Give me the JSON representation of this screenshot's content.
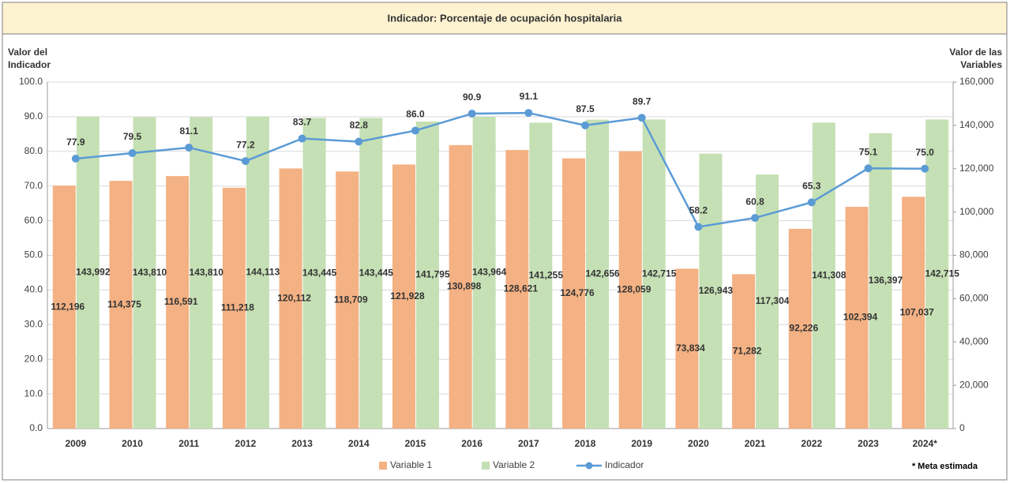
{
  "chart_data": {
    "type": "bar_line",
    "title": "Indicador: Porcentaje de ocupación hospitalaria",
    "y_label": "Valor del Indicador",
    "y2_label": "Valor de las Variables",
    "note": "* Meta estimada",
    "categories": [
      "2009",
      "2010",
      "2011",
      "2012",
      "2013",
      "2014",
      "2015",
      "2016",
      "2017",
      "2018",
      "2019",
      "2020",
      "2021",
      "2022",
      "2023",
      "2024*"
    ],
    "series": [
      {
        "name": "Variable 1",
        "type": "bar",
        "axis": "y2",
        "color": "#f4b183",
        "values": [
          112196,
          114375,
          116591,
          111218,
          120112,
          118709,
          121928,
          130898,
          128621,
          124776,
          128059,
          73834,
          71282,
          92226,
          102394,
          107037
        ],
        "value_labels": [
          "112,196",
          "114,375",
          "116,591",
          "111,218",
          "120,112",
          "118,709",
          "121,928",
          "130,898",
          "128,621",
          "124,776",
          "128,059",
          "73,834",
          "71,282",
          "92,226",
          "102,394",
          "107,037"
        ]
      },
      {
        "name": "Variable 2",
        "type": "bar",
        "axis": "y2",
        "color": "#c5e0b4",
        "values": [
          143992,
          143810,
          143810,
          144113,
          143445,
          143445,
          141795,
          143964,
          141255,
          142656,
          142715,
          126943,
          117304,
          141308,
          136397,
          142715
        ],
        "value_labels": [
          "143,992",
          "143,810",
          "143,810",
          "144,113",
          "143,445",
          "143,445",
          "141,795",
          "143,964",
          "141,255",
          "142,656",
          "142,715",
          "126,943",
          "117,304",
          "141,308",
          "136,397",
          "142,715"
        ]
      },
      {
        "name": "Indicador",
        "type": "line",
        "axis": "y",
        "color": "#5b9bd5",
        "values": [
          77.9,
          79.5,
          81.1,
          77.2,
          83.7,
          82.8,
          86.0,
          90.9,
          91.1,
          87.5,
          89.7,
          58.2,
          60.8,
          65.3,
          75.1,
          75.0
        ],
        "value_labels": [
          "77.9",
          "79.5",
          "81.1",
          "77.2",
          "83.7",
          "82.8",
          "86.0",
          "90.9",
          "91.1",
          "87.5",
          "89.7",
          "58.2",
          "60.8",
          "65.3",
          "75.1",
          "75.0"
        ]
      }
    ],
    "ylim": [
      0,
      100
    ],
    "yticks": [
      {
        "value": 0,
        "label": "0.0"
      },
      {
        "value": 10,
        "label": "10.0"
      },
      {
        "value": 20,
        "label": "20.0"
      },
      {
        "value": 30,
        "label": "30.0"
      },
      {
        "value": 40,
        "label": "40.0"
      },
      {
        "value": 50,
        "label": "50.0"
      },
      {
        "value": 60,
        "label": "60.0"
      },
      {
        "value": 70,
        "label": "70.0"
      },
      {
        "value": 80,
        "label": "80.0"
      },
      {
        "value": 90,
        "label": "90.0"
      },
      {
        "value": 100,
        "label": "100.0"
      }
    ],
    "y2lim": [
      0,
      160000
    ],
    "y2ticks": [
      0,
      {
        "value": 20000,
        "label": "20,000"
      },
      {
        "value": 40000,
        "label": "40,000"
      },
      {
        "value": 60000,
        "label": "60,000"
      },
      {
        "value": 80000,
        "label": "80,000"
      },
      {
        "value": 100000,
        "label": "100,000"
      },
      {
        "value": 120000,
        "label": "120,000"
      },
      {
        "value": 140000,
        "label": "140,000"
      },
      {
        "value": 160000,
        "label": "160,000"
      }
    ],
    "grid": true,
    "legend": "bottom"
  }
}
